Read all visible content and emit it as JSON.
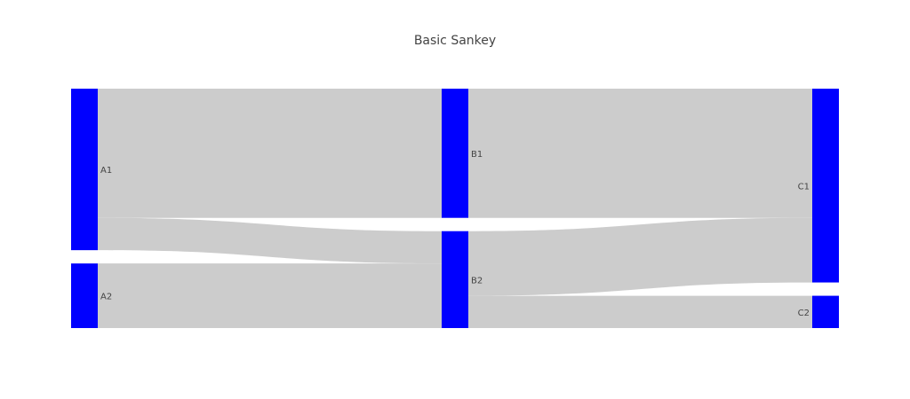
{
  "chart_data": {
    "type": "sankey",
    "title": "Basic Sankey",
    "nodes": [
      {
        "id": "A1",
        "label": "A1",
        "column": 0
      },
      {
        "id": "A2",
        "label": "A2",
        "column": 0
      },
      {
        "id": "B1",
        "label": "B1",
        "column": 1
      },
      {
        "id": "B2",
        "label": "B2",
        "column": 1
      },
      {
        "id": "C1",
        "label": "C1",
        "column": 2
      },
      {
        "id": "C2",
        "label": "C2",
        "column": 2
      }
    ],
    "links": [
      {
        "source": "A1",
        "target": "B1",
        "value": 8
      },
      {
        "source": "A1",
        "target": "B2",
        "value": 2
      },
      {
        "source": "A2",
        "target": "B2",
        "value": 4
      },
      {
        "source": "B1",
        "target": "C1",
        "value": 8
      },
      {
        "source": "B2",
        "target": "C1",
        "value": 4
      },
      {
        "source": "B2",
        "target": "C2",
        "value": 2
      }
    ]
  },
  "colors": {
    "node": "#0000ff",
    "link": "#cccccc",
    "text": "#444444",
    "background": "#ffffff"
  }
}
